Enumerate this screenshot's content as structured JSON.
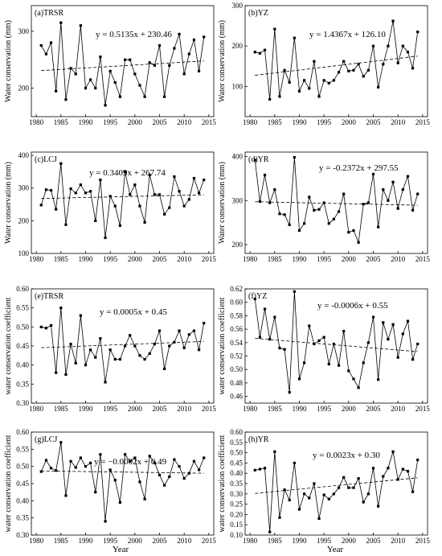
{
  "figure": {
    "xlabel": "Year",
    "ylabel_mm": "Water conservation (mm)",
    "ylabel_coef": "water conservation coefficient"
  },
  "chart_data": [
    {
      "type": "line",
      "title": "(a)TRSR",
      "equation": "y = 0.5135x + 230.46",
      "xlabel": "",
      "ylabel": "Water conservation (mm)",
      "xlim": [
        1979,
        2016
      ],
      "ylim": [
        150,
        345
      ],
      "xticks": [
        1980,
        1985,
        1990,
        1995,
        2000,
        2005,
        2010,
        2015
      ],
      "yticks": [
        200,
        300
      ],
      "ytick_labels": [
        "200",
        "300"
      ],
      "trend": {
        "slope": 0.5135,
        "intercept": 230.46,
        "x0": 1981,
        "x_start": 1981,
        "x_end": 2014
      },
      "x": [
        1981,
        1982,
        1983,
        1984,
        1985,
        1986,
        1987,
        1988,
        1989,
        1990,
        1991,
        1992,
        1993,
        1994,
        1995,
        1996,
        1997,
        1998,
        1999,
        2000,
        2001,
        2002,
        2003,
        2004,
        2005,
        2006,
        2007,
        2008,
        2009,
        2010,
        2011,
        2012,
        2013,
        2014
      ],
      "values": [
        275,
        260,
        280,
        195,
        315,
        180,
        235,
        225,
        310,
        200,
        215,
        200,
        255,
        170,
        230,
        210,
        185,
        250,
        250,
        225,
        205,
        185,
        245,
        240,
        275,
        185,
        240,
        270,
        295,
        225,
        260,
        285,
        230,
        290
      ]
    },
    {
      "type": "line",
      "title": "(b)YZ",
      "equation": "y = 1.4367x + 126.10",
      "xlabel": "",
      "ylabel": "Water conservation (mm)",
      "xlim": [
        1979,
        2016
      ],
      "ylim": [
        25,
        300
      ],
      "xticks": [
        1980,
        1985,
        1990,
        1995,
        2000,
        2005,
        2010,
        2015
      ],
      "yticks": [
        100,
        200,
        300
      ],
      "ytick_labels": [
        "100",
        "200",
        "300"
      ],
      "trend": {
        "slope": 1.4367,
        "intercept": 126.1,
        "x0": 1981,
        "x_start": 1981,
        "x_end": 2014
      },
      "x": [
        1981,
        1982,
        1983,
        1984,
        1985,
        1986,
        1987,
        1988,
        1989,
        1990,
        1991,
        1992,
        1993,
        1994,
        1995,
        1996,
        1997,
        1998,
        1999,
        2000,
        2001,
        2002,
        2003,
        2004,
        2005,
        2006,
        2007,
        2008,
        2009,
        2010,
        2011,
        2012,
        2013,
        2014
      ],
      "values": [
        185,
        182,
        190,
        68,
        242,
        75,
        140,
        110,
        220,
        88,
        115,
        95,
        162,
        75,
        115,
        108,
        115,
        135,
        162,
        138,
        140,
        155,
        125,
        140,
        200,
        98,
        155,
        200,
        262,
        158,
        200,
        185,
        145,
        235
      ]
    },
    {
      "type": "line",
      "title": "(c)LCJ",
      "equation": "y = 0.3409x + 267.74",
      "xlabel": "",
      "ylabel": "Water conservation (mm)",
      "xlim": [
        1979,
        2016
      ],
      "ylim": [
        100,
        410
      ],
      "xticks": [
        1980,
        1985,
        1990,
        1995,
        2000,
        2005,
        2010,
        2015
      ],
      "yticks": [
        100,
        200,
        300,
        400
      ],
      "ytick_labels": [
        "100",
        "200",
        "300",
        "400"
      ],
      "trend": {
        "slope": 0.3409,
        "intercept": 267.74,
        "x0": 1981,
        "x_start": 1981,
        "x_end": 2014
      },
      "x": [
        1981,
        1982,
        1983,
        1984,
        1985,
        1986,
        1987,
        1988,
        1989,
        1990,
        1991,
        1992,
        1993,
        1994,
        1995,
        1996,
        1997,
        1998,
        1999,
        2000,
        2001,
        2002,
        2003,
        2004,
        2005,
        2006,
        2007,
        2008,
        2009,
        2010,
        2011,
        2012,
        2013,
        2014
      ],
      "values": [
        248,
        295,
        293,
        235,
        375,
        188,
        298,
        285,
        310,
        285,
        290,
        200,
        325,
        148,
        275,
        245,
        185,
        350,
        280,
        310,
        245,
        195,
        340,
        280,
        280,
        220,
        240,
        335,
        290,
        245,
        265,
        330,
        285,
        325
      ]
    },
    {
      "type": "line",
      "title": "(d)YR",
      "equation": "y = -0.2372x + 297.55",
      "xlabel": "",
      "ylabel": "Water conservation (mm)",
      "xlim": [
        1979,
        2016
      ],
      "ylim": [
        180,
        410
      ],
      "xticks": [
        1980,
        1985,
        1990,
        1995,
        2000,
        2005,
        2010,
        2015
      ],
      "yticks": [
        200,
        300,
        400
      ],
      "ytick_labels": [
        "200",
        "300",
        "400"
      ],
      "trend": {
        "slope": -0.2372,
        "intercept": 297.55,
        "x0": 1981,
        "x_start": 1981,
        "x_end": 2014
      },
      "x": [
        1981,
        1982,
        1983,
        1984,
        1985,
        1986,
        1987,
        1988,
        1989,
        1990,
        1991,
        1992,
        1993,
        1994,
        1995,
        1996,
        1997,
        1998,
        1999,
        2000,
        2001,
        2002,
        2003,
        2004,
        2005,
        2006,
        2007,
        2008,
        2009,
        2010,
        2011,
        2012,
        2013,
        2014
      ],
      "values": [
        392,
        298,
        358,
        295,
        325,
        270,
        268,
        245,
        398,
        232,
        248,
        308,
        278,
        280,
        295,
        248,
        258,
        275,
        315,
        228,
        232,
        205,
        292,
        295,
        360,
        240,
        325,
        300,
        342,
        282,
        325,
        355,
        278,
        315
      ]
    },
    {
      "type": "line",
      "title": "(e)TRSR",
      "equation": "y = 0.0005x + 0.45",
      "xlabel": "",
      "ylabel": "water conservation coefficient",
      "xlim": [
        1979,
        2016
      ],
      "ylim": [
        0.3,
        0.6
      ],
      "xticks": [
        1980,
        1985,
        1990,
        1995,
        2000,
        2005,
        2010,
        2015
      ],
      "yticks": [
        0.3,
        0.35,
        0.4,
        0.45,
        0.5,
        0.55,
        0.6
      ],
      "ytick_labels": [
        "0.30",
        "0.35",
        "0.40",
        "0.45",
        "0.50",
        "0.55",
        "0.60"
      ],
      "trend": {
        "slope": 0.0005,
        "intercept": 0.445,
        "x0": 1981,
        "x_start": 1981,
        "x_end": 2014
      },
      "x": [
        1981,
        1982,
        1983,
        1984,
        1985,
        1986,
        1987,
        1988,
        1989,
        1990,
        1991,
        1992,
        1993,
        1994,
        1995,
        1996,
        1997,
        1998,
        1999,
        2000,
        2001,
        2002,
        2003,
        2004,
        2005,
        2006,
        2007,
        2008,
        2009,
        2010,
        2011,
        2012,
        2013,
        2014
      ],
      "values": [
        0.5,
        0.497,
        0.504,
        0.38,
        0.55,
        0.375,
        0.455,
        0.405,
        0.53,
        0.4,
        0.44,
        0.42,
        0.47,
        0.355,
        0.44,
        0.415,
        0.415,
        0.45,
        0.478,
        0.45,
        0.425,
        0.415,
        0.43,
        0.455,
        0.49,
        0.39,
        0.45,
        0.46,
        0.49,
        0.445,
        0.48,
        0.49,
        0.44,
        0.51
      ]
    },
    {
      "type": "line",
      "title": "(f)YZ",
      "equation": "y = -0.0006x + 0.55",
      "xlabel": "",
      "ylabel": "water conservation coefficient",
      "xlim": [
        1979,
        2016
      ],
      "ylim": [
        0.45,
        0.62
      ],
      "xticks": [
        1980,
        1985,
        1990,
        1995,
        2000,
        2005,
        2010,
        2015
      ],
      "yticks": [
        0.46,
        0.48,
        0.5,
        0.52,
        0.54,
        0.56,
        0.58,
        0.6,
        0.62
      ],
      "ytick_labels": [
        "0.46",
        "0.48",
        "0.50",
        "0.52",
        "0.54",
        "0.56",
        "0.58",
        "0.60",
        "0.62"
      ],
      "trend": {
        "slope": -0.0006,
        "intercept": 0.547,
        "x0": 1981,
        "x_start": 1981,
        "x_end": 2014
      },
      "x": [
        1981,
        1982,
        1983,
        1984,
        1985,
        1986,
        1987,
        1988,
        1989,
        1990,
        1991,
        1992,
        1993,
        1994,
        1995,
        1996,
        1997,
        1998,
        1999,
        2000,
        2001,
        2002,
        2003,
        2004,
        2005,
        2006,
        2007,
        2008,
        2009,
        2010,
        2011,
        2012,
        2013,
        2014
      ],
      "values": [
        0.605,
        0.548,
        0.59,
        0.545,
        0.578,
        0.532,
        0.53,
        0.466,
        0.616,
        0.486,
        0.51,
        0.565,
        0.538,
        0.543,
        0.548,
        0.508,
        0.538,
        0.506,
        0.557,
        0.498,
        0.486,
        0.473,
        0.51,
        0.54,
        0.578,
        0.485,
        0.57,
        0.545,
        0.567,
        0.518,
        0.553,
        0.572,
        0.515,
        0.538
      ]
    },
    {
      "type": "line",
      "title": "(g)LCJ",
      "equation": "y = −0.0002x + 0.49",
      "xlabel": "",
      "ylabel": "water conservation coefficient",
      "xlim": [
        1979,
        2016
      ],
      "ylim": [
        0.3,
        0.6
      ],
      "xticks": [
        1980,
        1985,
        1990,
        1995,
        2000,
        2005,
        2010,
        2015
      ],
      "yticks": [
        0.3,
        0.35,
        0.4,
        0.45,
        0.5,
        0.55,
        0.6
      ],
      "ytick_labels": [
        "0.30",
        "0.35",
        "0.40",
        "0.45",
        "0.50",
        "0.55",
        "0.60"
      ],
      "trend": {
        "slope": -0.0002,
        "intercept": 0.487,
        "x0": 1981,
        "x_start": 1981,
        "x_end": 2014
      },
      "x": [
        1981,
        1982,
        1983,
        1984,
        1985,
        1986,
        1987,
        1988,
        1989,
        1990,
        1991,
        1992,
        1993,
        1994,
        1995,
        1996,
        1997,
        1998,
        1999,
        2000,
        2001,
        2002,
        2003,
        2004,
        2005,
        2006,
        2007,
        2008,
        2009,
        2010,
        2011,
        2012,
        2013,
        2014
      ],
      "values": [
        0.485,
        0.518,
        0.495,
        0.488,
        0.57,
        0.415,
        0.515,
        0.497,
        0.525,
        0.5,
        0.51,
        0.425,
        0.535,
        0.34,
        0.49,
        0.46,
        0.395,
        0.535,
        0.515,
        0.525,
        0.455,
        0.405,
        0.53,
        0.51,
        0.475,
        0.445,
        0.47,
        0.52,
        0.5,
        0.465,
        0.48,
        0.515,
        0.49,
        0.525
      ]
    },
    {
      "type": "line",
      "title": "(h)YR",
      "equation": "y = 0.0023x + 0.30",
      "xlabel": "",
      "ylabel": "water conservation coefficient",
      "xlim": [
        1979,
        2016
      ],
      "ylim": [
        0.1,
        0.6
      ],
      "xticks": [
        1980,
        1985,
        1990,
        1995,
        2000,
        2005,
        2010,
        2015
      ],
      "yticks": [
        0.1,
        0.15,
        0.2,
        0.25,
        0.3,
        0.35,
        0.4,
        0.45,
        0.5,
        0.55,
        0.6
      ],
      "ytick_labels": [
        "0.10",
        "0.15",
        "0.20",
        "0.25",
        "0.30",
        "0.35",
        "0.40",
        "0.45",
        "0.50",
        "0.55",
        "0.60"
      ],
      "trend": {
        "slope": 0.0023,
        "intercept": 0.3,
        "x0": 1981,
        "x_start": 1981,
        "x_end": 2014
      },
      "x": [
        1981,
        1982,
        1983,
        1984,
        1985,
        1986,
        1987,
        1988,
        1989,
        1990,
        1991,
        1992,
        1993,
        1994,
        1995,
        1996,
        1997,
        1998,
        1999,
        2000,
        2001,
        2002,
        2003,
        2004,
        2005,
        2006,
        2007,
        2008,
        2009,
        2010,
        2011,
        2012,
        2013,
        2014
      ],
      "values": [
        0.415,
        0.42,
        0.425,
        0.115,
        0.505,
        0.185,
        0.32,
        0.27,
        0.45,
        0.225,
        0.3,
        0.28,
        0.35,
        0.18,
        0.295,
        0.275,
        0.3,
        0.33,
        0.38,
        0.33,
        0.33,
        0.375,
        0.26,
        0.3,
        0.425,
        0.24,
        0.385,
        0.425,
        0.505,
        0.37,
        0.42,
        0.41,
        0.31,
        0.465
      ]
    }
  ]
}
